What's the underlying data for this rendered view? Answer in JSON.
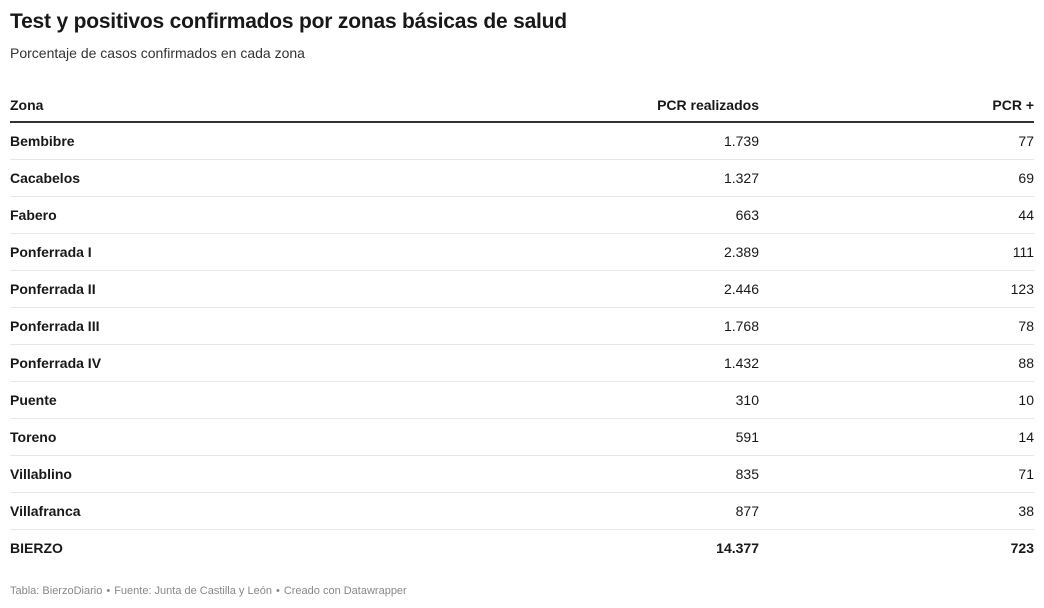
{
  "title": "Test y positivos confirmados por zonas básicas de salud",
  "subtitle": "Porcentaje de casos confirmados en cada zona",
  "chart_data": {
    "type": "table",
    "title": "Test y positivos confirmados por zonas básicas de salud",
    "subtitle": "Porcentaje de casos confirmados en cada zona",
    "columns": [
      "Zona",
      "PCR realizados",
      "PCR +"
    ],
    "rows": [
      {
        "zona": "Bembibre",
        "pcr": "1.739",
        "pos": "77"
      },
      {
        "zona": "Cacabelos",
        "pcr": "1.327",
        "pos": "69"
      },
      {
        "zona": "Fabero",
        "pcr": "663",
        "pos": "44"
      },
      {
        "zona": "Ponferrada I",
        "pcr": "2.389",
        "pos": "111"
      },
      {
        "zona": "Ponferrada II",
        "pcr": "2.446",
        "pos": "123"
      },
      {
        "zona": "Ponferrada III",
        "pcr": "1.768",
        "pos": "78"
      },
      {
        "zona": "Ponferrada IV",
        "pcr": "1.432",
        "pos": "88"
      },
      {
        "zona": "Puente",
        "pcr": "310",
        "pos": "10"
      },
      {
        "zona": "Toreno",
        "pcr": "591",
        "pos": "14"
      },
      {
        "zona": "Villablino",
        "pcr": "835",
        "pos": "71"
      },
      {
        "zona": "Villafranca",
        "pcr": "877",
        "pos": "38"
      }
    ],
    "total": {
      "zona": "BIERZO",
      "pcr": "14.377",
      "pos": "723"
    }
  },
  "footer": {
    "tabla": "Tabla: BierzoDiario",
    "fuente": "Fuente: Junta de Castilla y León",
    "creado": "Creado con Datawrapper",
    "separator": "•"
  }
}
